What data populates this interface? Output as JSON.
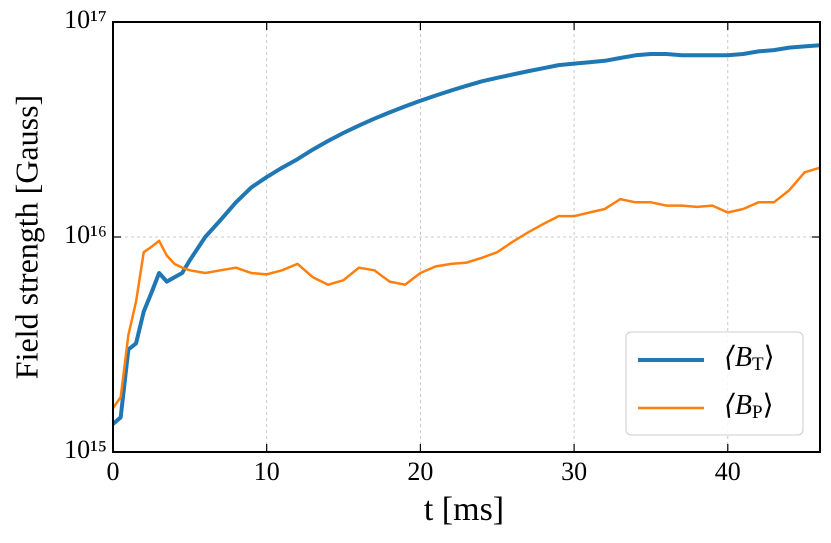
{
  "chart_data": {
    "type": "line",
    "xlabel": "t [ms]",
    "ylabel": "Field strength [Gauss]",
    "log_y": true,
    "grid": true,
    "legend": "lower right",
    "xlim": [
      0,
      46
    ],
    "xticks": [
      0,
      10,
      20,
      30,
      40
    ],
    "ylim": [
      1000000000000000.0,
      1e+17
    ],
    "yticks": [
      {
        "value": 1000000000000000.0,
        "label": "10¹⁵"
      },
      {
        "value": 1e+16,
        "label": "10¹⁶"
      },
      {
        "value": 1e+17,
        "label": "10¹⁷"
      }
    ],
    "x": [
      0,
      0.5,
      1,
      1.5,
      2,
      2.5,
      3,
      3.5,
      4,
      4.5,
      5,
      6,
      7,
      8,
      9,
      10,
      11,
      12,
      13,
      14,
      15,
      16,
      17,
      18,
      19,
      20,
      21,
      22,
      23,
      24,
      25,
      26,
      27,
      28,
      29,
      30,
      31,
      32,
      33,
      34,
      35,
      36,
      37,
      38,
      39,
      40,
      41,
      42,
      43,
      44,
      45,
      46
    ],
    "series": [
      {
        "name": "⟨BT⟩",
        "color": "#1f77b4",
        "width": 4,
        "values": [
          1350000000000000.0,
          1450000000000000.0,
          3000000000000000.0,
          3200000000000000.0,
          4500000000000000.0,
          5500000000000000.0,
          6800000000000000.0,
          6200000000000000.0,
          6500000000000000.0,
          6800000000000000.0,
          7800000000000000.0,
          1e+16,
          1.2e+16,
          1.45e+16,
          1.7e+16,
          1.9e+16,
          2.1e+16,
          2.3e+16,
          2.55e+16,
          2.8e+16,
          3.05e+16,
          3.3e+16,
          3.55e+16,
          3.8e+16,
          4.05e+16,
          4.3e+16,
          4.55e+16,
          4.8e+16,
          5.05e+16,
          5.3e+16,
          5.5e+16,
          5.7e+16,
          5.9e+16,
          6.1e+16,
          6.3e+16,
          6.4e+16,
          6.5e+16,
          6.6e+16,
          6.8e+16,
          7e+16,
          7.1e+16,
          7.1e+16,
          7e+16,
          7e+16,
          7e+16,
          7e+16,
          7.1e+16,
          7.3e+16,
          7.4e+16,
          7.6e+16,
          7.7e+16,
          7.8e+16
        ]
      },
      {
        "name": "⟨BP⟩",
        "color": "#ff7f0e",
        "width": 2.5,
        "values": [
          1600000000000000.0,
          1800000000000000.0,
          3500000000000000.0,
          5000000000000000.0,
          8500000000000000.0,
          9000000000000000.0,
          9600000000000000.0,
          8200000000000000.0,
          7500000000000000.0,
          7200000000000000.0,
          7000000000000000.0,
          6800000000000000.0,
          7000000000000000.0,
          7200000000000000.0,
          6800000000000000.0,
          6700000000000000.0,
          7000000000000000.0,
          7500000000000000.0,
          6500000000000000.0,
          6000000000000000.0,
          6300000000000000.0,
          7200000000000000.0,
          7000000000000000.0,
          6200000000000000.0,
          6000000000000000.0,
          6800000000000000.0,
          7300000000000000.0,
          7500000000000000.0,
          7600000000000000.0,
          8000000000000000.0,
          8500000000000000.0,
          9500000000000000.0,
          1.05e+16,
          1.15e+16,
          1.25e+16,
          1.25e+16,
          1.3e+16,
          1.35e+16,
          1.5e+16,
          1.45e+16,
          1.45e+16,
          1.4e+16,
          1.4e+16,
          1.38e+16,
          1.4e+16,
          1.3e+16,
          1.35e+16,
          1.45e+16,
          1.45e+16,
          1.65e+16,
          2e+16,
          2.1e+16
        ]
      }
    ]
  }
}
